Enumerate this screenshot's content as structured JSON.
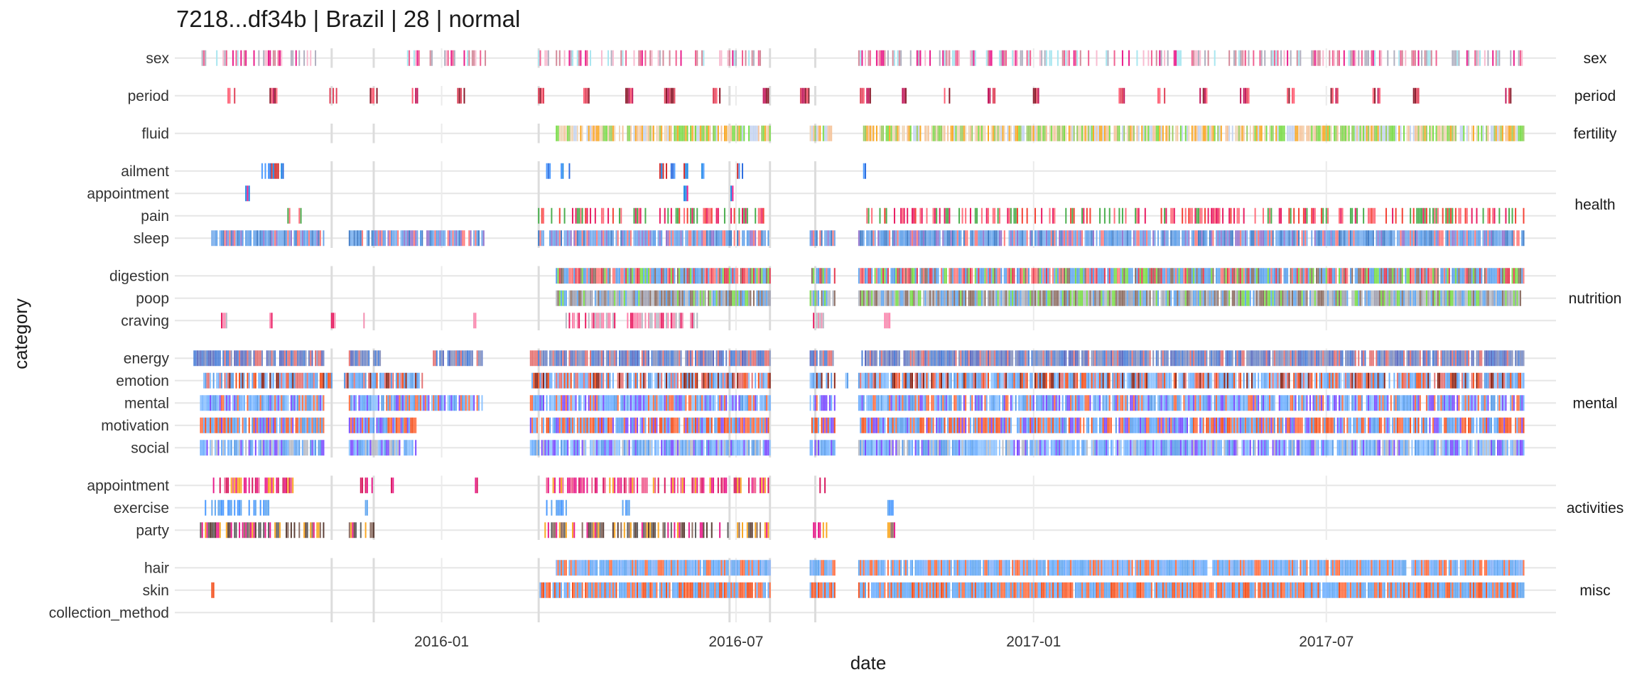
{
  "chart_data": {
    "type": "event-strip",
    "title": "7218...df34b | Brazil | 28 | normal",
    "xlabel": "date",
    "ylabel": "category",
    "x_ticks": [
      "2016-01",
      "2016-07",
      "2017-01",
      "2017-07"
    ],
    "x_tick_dates": [
      "2016-01-01",
      "2016-07-01",
      "2017-01-01",
      "2017-07-01"
    ],
    "xlim": [
      "2015-07-20",
      "2017-11-20"
    ],
    "vlines": [
      "2015-10-25",
      "2015-11-20",
      "2016-03-01",
      "2016-06-27",
      "2016-07-22",
      "2016-08-19"
    ],
    "grid": true,
    "legend": "none",
    "facets": [
      {
        "name": "sex",
        "rows": [
          {
            "label": "sex",
            "segments": [
              [
                "2015-08-06",
                "2015-08-08"
              ],
              [
                "2015-08-12",
                "2015-10-18"
              ],
              [
                "2015-12-10",
                "2016-01-29"
              ],
              [
                "2016-03-01",
                "2016-07-16"
              ],
              [
                "2016-09-15",
                "2017-10-31"
              ]
            ],
            "colors": [
              "#d48a9a",
              "#f06292",
              "#e91e8c",
              "#b0b0c0",
              "#f8bbd0",
              "#a8e6f0"
            ],
            "density": 0.45
          }
        ]
      },
      {
        "name": "period",
        "rows": [
          {
            "label": "period",
            "segments": [
              [
                "2015-08-22",
                "2015-08-26"
              ],
              [
                "2015-09-17",
                "2015-09-21"
              ],
              [
                "2015-10-24",
                "2015-10-28"
              ],
              [
                "2015-11-18",
                "2015-11-22"
              ],
              [
                "2015-12-14",
                "2015-12-18"
              ],
              [
                "2016-01-11",
                "2016-01-15"
              ],
              [
                "2016-02-29",
                "2016-03-04"
              ],
              [
                "2016-03-28",
                "2016-04-01"
              ],
              [
                "2016-04-24",
                "2016-04-28"
              ],
              [
                "2016-05-18",
                "2016-05-24"
              ],
              [
                "2016-06-17",
                "2016-06-21"
              ],
              [
                "2016-07-16",
                "2016-07-21"
              ],
              [
                "2016-08-10",
                "2016-08-15"
              ],
              [
                "2016-09-15",
                "2016-09-22"
              ],
              [
                "2016-10-11",
                "2016-10-15"
              ],
              [
                "2016-11-07",
                "2016-11-11"
              ],
              [
                "2016-12-04",
                "2016-12-08"
              ],
              [
                "2017-01-01",
                "2017-01-05"
              ],
              [
                "2017-02-22",
                "2017-02-27"
              ],
              [
                "2017-03-19",
                "2017-03-23"
              ],
              [
                "2017-04-14",
                "2017-04-18"
              ],
              [
                "2017-05-09",
                "2017-05-14"
              ],
              [
                "2017-06-07",
                "2017-06-11"
              ],
              [
                "2017-07-04",
                "2017-07-09"
              ],
              [
                "2017-07-30",
                "2017-08-03"
              ],
              [
                "2017-08-24",
                "2017-08-28"
              ],
              [
                "2017-10-19",
                "2017-10-23"
              ]
            ],
            "colors": [
              "#e0435a",
              "#c2185b",
              "#ff5f75",
              "#8b1a2b"
            ],
            "density": 0.75
          }
        ]
      },
      {
        "name": "fertility",
        "rows": [
          {
            "label": "fluid",
            "segments": [
              [
                "2016-03-12",
                "2016-07-22"
              ],
              [
                "2016-08-16",
                "2016-08-29"
              ],
              [
                "2016-09-18",
                "2017-10-31"
              ]
            ],
            "colors": [
              "#f0d6b8",
              "#f5c49b",
              "#f9a825",
              "#c5d4f0",
              "#7bdc4a",
              "#9ccc65"
            ],
            "density": 0.85
          }
        ]
      },
      {
        "name": "health",
        "rows": [
          {
            "label": "ailment",
            "segments": [
              [
                "2015-09-12",
                "2015-09-25"
              ],
              [
                "2016-03-06",
                "2016-03-08"
              ],
              [
                "2016-03-14",
                "2016-03-20"
              ],
              [
                "2016-05-15",
                "2016-05-24"
              ],
              [
                "2016-05-30",
                "2016-06-01"
              ],
              [
                "2016-06-10",
                "2016-06-11"
              ],
              [
                "2016-07-01",
                "2016-07-07"
              ],
              [
                "2016-09-18",
                "2016-09-19"
              ]
            ],
            "colors": [
              "#4c9aff",
              "#2f6fe0",
              "#1e88e5",
              "#d32f2f"
            ],
            "density": 0.7
          },
          {
            "label": "appointment",
            "segments": [
              [
                "2015-09-02",
                "2015-09-04"
              ],
              [
                "2016-05-29",
                "2016-06-02"
              ],
              [
                "2016-06-28",
                "2016-06-29"
              ]
            ],
            "colors": [
              "#1e88e5",
              "#8e24aa",
              "#e91e8c"
            ],
            "density": 0.9
          },
          {
            "label": "pain",
            "segments": [
              [
                "2015-09-28",
                "2015-09-29"
              ],
              [
                "2015-10-05",
                "2015-10-06"
              ],
              [
                "2016-03-01",
                "2016-07-20"
              ],
              [
                "2016-09-17",
                "2017-10-31"
              ]
            ],
            "colors": [
              "#f44336",
              "#ff6f7d",
              "#e91e63",
              "#4caf50"
            ],
            "density": 0.45
          },
          {
            "label": "sleep",
            "segments": [
              [
                "2015-08-12",
                "2015-10-20"
              ],
              [
                "2015-11-05",
                "2016-01-28"
              ],
              [
                "2016-03-01",
                "2016-03-04"
              ],
              [
                "2016-03-08",
                "2016-07-22"
              ],
              [
                "2016-08-16",
                "2016-08-31"
              ],
              [
                "2016-09-15",
                "2017-10-31"
              ]
            ],
            "colors": [
              "#5b9ee9",
              "#70a6e8",
              "#3f7cc7",
              "#ff7b7b",
              "#9575cd",
              "#7ab0ef"
            ],
            "density": 0.9
          }
        ]
      },
      {
        "name": "nutrition",
        "rows": [
          {
            "label": "digestion",
            "segments": [
              [
                "2016-03-12",
                "2016-07-22"
              ],
              [
                "2016-08-16",
                "2016-08-31"
              ],
              [
                "2016-09-15",
                "2017-10-31"
              ]
            ],
            "colors": [
              "#64a8f0",
              "#5b9ee9",
              "#e53950",
              "#ff7b7b",
              "#7bdc4a",
              "#8d6e63"
            ],
            "density": 0.95
          },
          {
            "label": "poop",
            "segments": [
              [
                "2016-03-12",
                "2016-07-22"
              ],
              [
                "2016-08-16",
                "2016-08-31"
              ],
              [
                "2016-09-15",
                "2017-10-31"
              ]
            ],
            "colors": [
              "#b8bcc6",
              "#64a8f0",
              "#a0a0b0",
              "#7bdc4a",
              "#8d6e63"
            ],
            "density": 0.95
          },
          {
            "label": "craving",
            "segments": [
              [
                "2015-08-17",
                "2015-08-22"
              ],
              [
                "2015-09-17",
                "2015-09-18"
              ],
              [
                "2015-10-25",
                "2015-10-27"
              ],
              [
                "2015-11-10",
                "2015-11-15"
              ],
              [
                "2016-01-21",
                "2016-01-22"
              ],
              [
                "2016-03-17",
                "2016-04-18"
              ],
              [
                "2016-04-25",
                "2016-06-07"
              ],
              [
                "2016-08-15",
                "2016-08-26"
              ],
              [
                "2016-10-01",
                "2016-10-04"
              ]
            ],
            "colors": [
              "#f48fb1",
              "#b8bcc6",
              "#ff80ab",
              "#e91e63"
            ],
            "density": 0.6
          }
        ]
      },
      {
        "name": "mental",
        "rows": [
          {
            "label": "energy",
            "segments": [
              [
                "2015-08-01",
                "2015-10-20"
              ],
              [
                "2015-11-05",
                "2015-11-25"
              ],
              [
                "2015-12-27",
                "2016-01-26"
              ],
              [
                "2016-02-25",
                "2016-03-06"
              ],
              [
                "2016-03-08",
                "2016-07-22"
              ],
              [
                "2016-08-16",
                "2016-08-31"
              ],
              [
                "2016-09-15",
                "2017-10-31"
              ]
            ],
            "colors": [
              "#6f87c8",
              "#4c80d8",
              "#e57373",
              "#5c6bc0",
              "#8a95c0"
            ],
            "density": 0.9
          },
          {
            "label": "emotion",
            "segments": [
              [
                "2015-08-07",
                "2015-10-25"
              ],
              [
                "2015-11-02",
                "2015-12-20"
              ],
              [
                "2016-02-26",
                "2016-07-22"
              ],
              [
                "2016-08-16",
                "2016-08-31"
              ],
              [
                "2016-09-07",
                "2016-09-08"
              ],
              [
                "2016-09-15",
                "2017-10-31"
              ]
            ],
            "colors": [
              "#6fb0ff",
              "#8b2518",
              "#e57373",
              "#f4511e",
              "#90c4ff",
              "#5b9ee9"
            ],
            "density": 0.9
          },
          {
            "label": "mental",
            "segments": [
              [
                "2015-08-05",
                "2015-10-20"
              ],
              [
                "2015-11-05",
                "2016-01-26"
              ],
              [
                "2016-02-25",
                "2016-07-22"
              ],
              [
                "2016-08-16",
                "2016-08-31"
              ],
              [
                "2016-09-15",
                "2017-10-31"
              ]
            ],
            "colors": [
              "#6fb0ff",
              "#7c4dff",
              "#ff7043",
              "#90c4ff",
              "#5b9ee9"
            ],
            "density": 0.9
          },
          {
            "label": "motivation",
            "segments": [
              [
                "2015-08-05",
                "2015-10-20"
              ],
              [
                "2015-11-05",
                "2015-12-16"
              ],
              [
                "2016-02-25",
                "2016-07-22"
              ],
              [
                "2016-08-16",
                "2016-08-31"
              ],
              [
                "2016-09-15",
                "2017-10-31"
              ]
            ],
            "colors": [
              "#6fb0ff",
              "#7c4dff",
              "#ff7043",
              "#f4511e",
              "#5b9ee9"
            ],
            "density": 0.9
          },
          {
            "label": "social",
            "segments": [
              [
                "2015-08-05",
                "2015-10-20"
              ],
              [
                "2015-11-05",
                "2015-12-16"
              ],
              [
                "2016-02-25",
                "2016-07-22"
              ],
              [
                "2016-08-16",
                "2016-08-31"
              ],
              [
                "2016-09-15",
                "2017-10-31"
              ]
            ],
            "colors": [
              "#6fb0ff",
              "#b8bcc6",
              "#7c4dff",
              "#5b9ee9",
              "#90c4ff"
            ],
            "density": 0.9
          }
        ]
      },
      {
        "name": "activities",
        "rows": [
          {
            "label": "appointment",
            "segments": [
              [
                "2015-08-10",
                "2015-10-02"
              ],
              [
                "2015-11-12",
                "2015-11-20"
              ],
              [
                "2015-12-01",
                "2015-12-02"
              ],
              [
                "2016-01-22",
                "2016-01-23"
              ],
              [
                "2016-03-05",
                "2016-07-22"
              ],
              [
                "2016-08-20",
                "2016-08-26"
              ]
            ],
            "colors": [
              "#e91e8c",
              "#f06292",
              "#f9a825",
              "#d81b60"
            ],
            "density": 0.6
          },
          {
            "label": "exercise",
            "segments": [
              [
                "2015-08-05",
                "2015-09-18"
              ],
              [
                "2015-11-15",
                "2015-11-16"
              ],
              [
                "2016-03-05",
                "2016-03-18"
              ],
              [
                "2016-04-18",
                "2016-04-28"
              ],
              [
                "2016-10-03",
                "2016-10-06"
              ]
            ],
            "colors": [
              "#64a8f0",
              "#4c9aff"
            ],
            "density": 0.55
          },
          {
            "label": "party",
            "segments": [
              [
                "2015-08-05",
                "2015-10-20"
              ],
              [
                "2015-11-05",
                "2015-11-20"
              ],
              [
                "2016-03-05",
                "2016-07-22"
              ],
              [
                "2016-08-16",
                "2016-08-31"
              ],
              [
                "2016-10-03",
                "2016-10-07"
              ]
            ],
            "colors": [
              "#616161",
              "#8d6e63",
              "#f9a825",
              "#e91e8c",
              "#5d4037"
            ],
            "density": 0.55
          }
        ]
      },
      {
        "name": "misc",
        "rows": [
          {
            "label": "hair",
            "segments": [
              [
                "2016-03-12",
                "2016-07-22"
              ],
              [
                "2016-08-16",
                "2016-08-31"
              ],
              [
                "2016-09-15",
                "2017-10-31"
              ]
            ],
            "colors": [
              "#6fb0ff",
              "#64a8f0",
              "#ff7043",
              "#8ab4f8"
            ],
            "density": 0.95
          },
          {
            "label": "skin",
            "segments": [
              [
                "2015-08-12",
                "2015-08-13"
              ],
              [
                "2016-03-01",
                "2016-07-22"
              ],
              [
                "2016-08-16",
                "2016-08-31"
              ],
              [
                "2016-09-15",
                "2017-10-31"
              ]
            ],
            "colors": [
              "#6fb0ff",
              "#ff7043",
              "#f4511e",
              "#64a8f0"
            ],
            "density": 0.95
          },
          {
            "label": "collection_method",
            "segments": [],
            "colors": [],
            "density": 0
          }
        ]
      }
    ]
  }
}
